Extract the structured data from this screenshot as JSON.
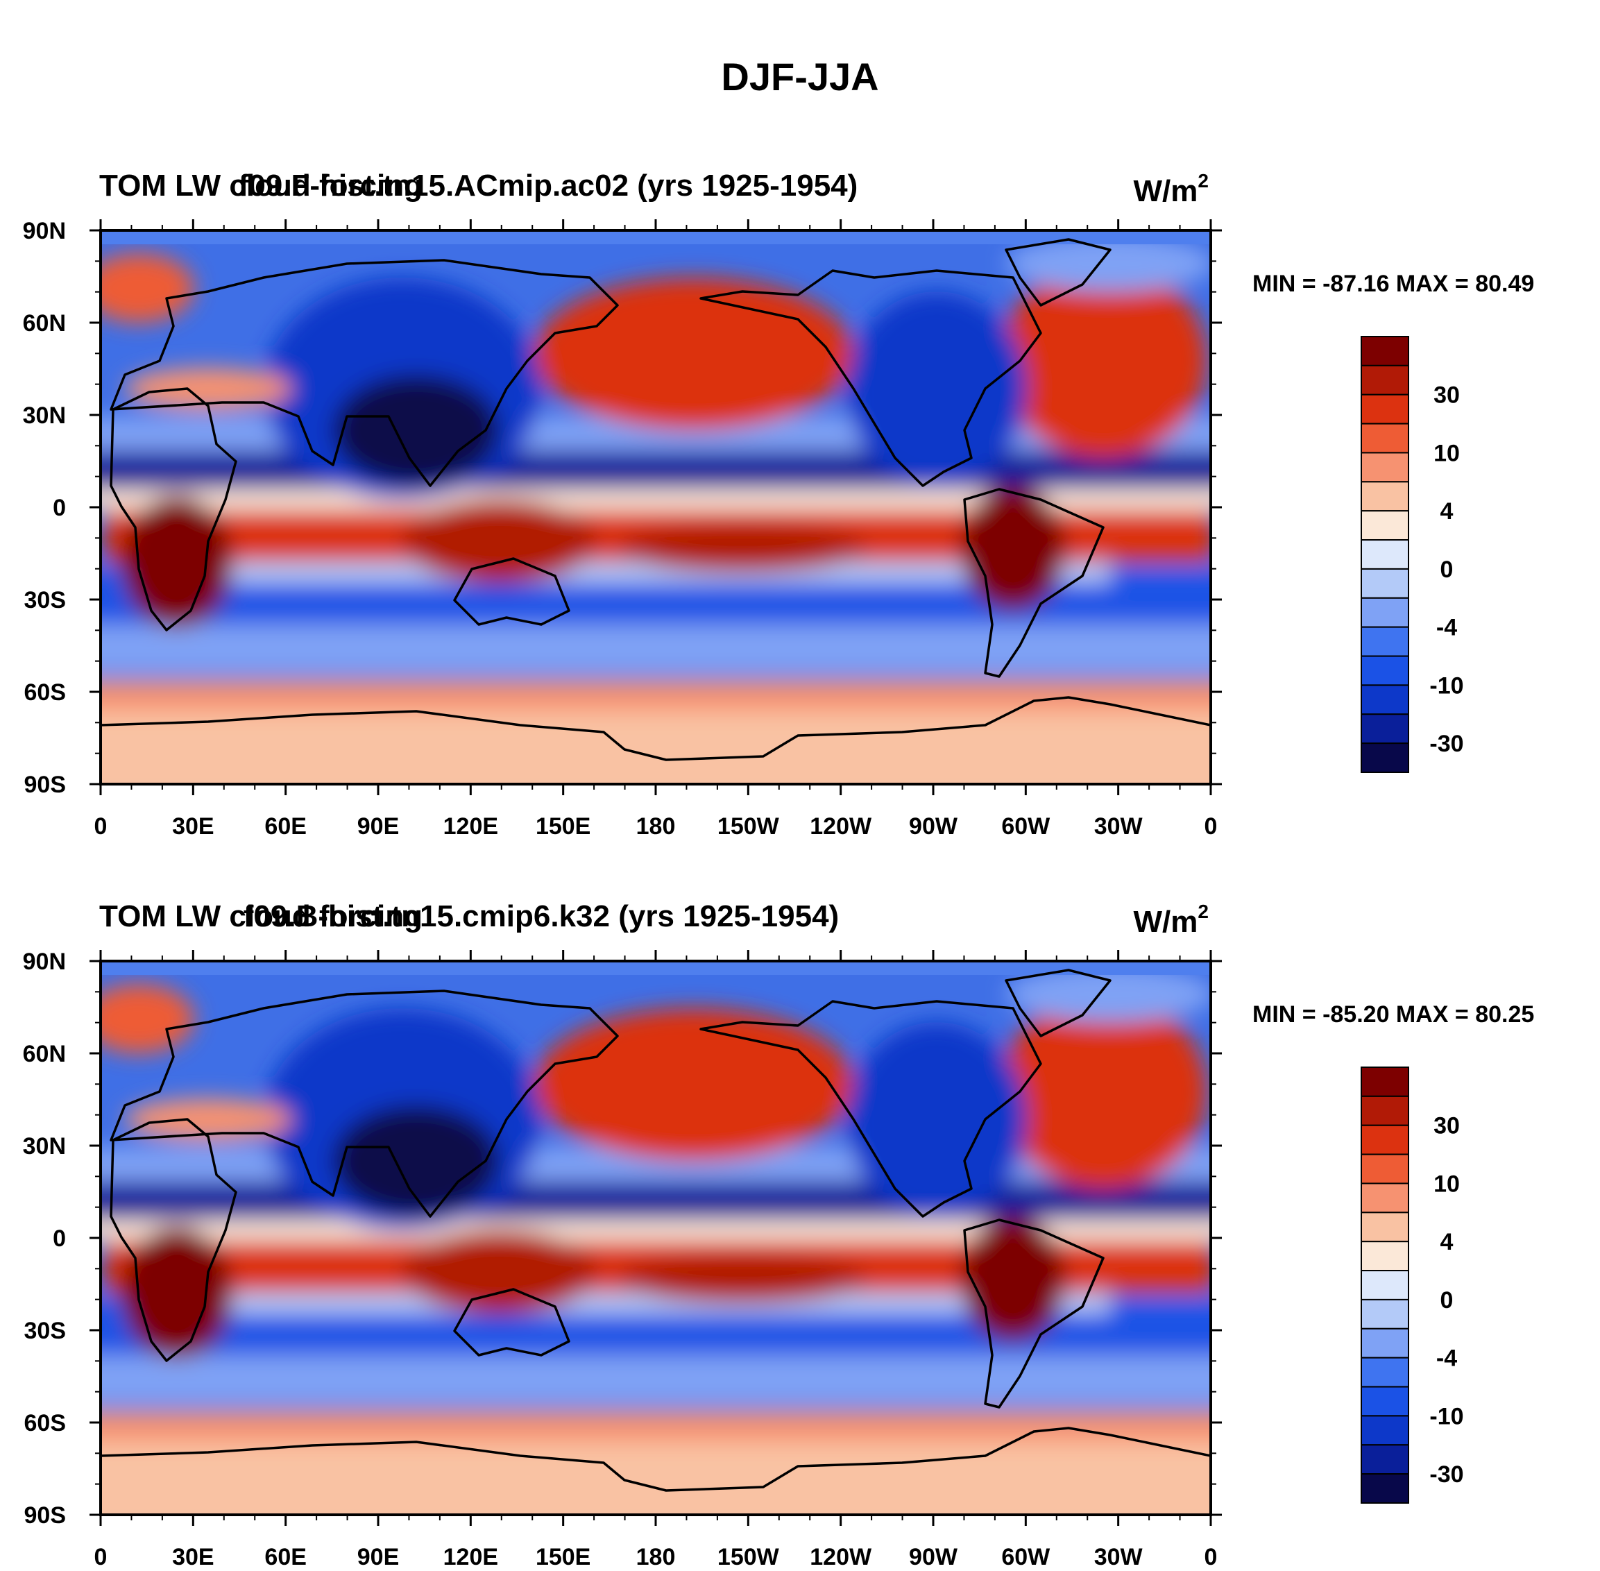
{
  "figure": {
    "title": "DJF-JJA"
  },
  "colors": {
    "ocean_base": "#3f6fe6",
    "coastline": "#000000",
    "colorbar": [
      "#08084a",
      "#0a1f9a",
      "#0d38c9",
      "#1b52e6",
      "#3f74f0",
      "#7fa2f5",
      "#b3caf8",
      "#dde8fb",
      "#fbe8d8",
      "#f9c2a3",
      "#f69271",
      "#ee5c35",
      "#dc3210",
      "#b11a06",
      "#7d0000"
    ]
  },
  "panels": [
    {
      "id": "top",
      "left_title": "TOM LW cloud forcing",
      "case_title": "f09.F-hist.tn15.ACmip.ac02 (yrs 1925-1954)",
      "units_base": "W/m",
      "units_exp": "2",
      "min_max": "MIN = -87.16 MAX =  80.49",
      "colorbar_labels": [
        "30",
        "10",
        "4",
        "0",
        "-4",
        "-10",
        "-30"
      ],
      "lat_labels": [
        "90N",
        "60N",
        "30N",
        "0",
        "30S",
        "60S",
        "90S"
      ],
      "lon_labels": [
        "0",
        "30E",
        "60E",
        "90E",
        "120E",
        "150E",
        "180",
        "150W",
        "120W",
        "90W",
        "60W",
        "30W",
        "0"
      ]
    },
    {
      "id": "bottom",
      "left_title": "TOM LW cloud forcing",
      "case_title": "f09.B-hist.tn15.cmip6.k32 (yrs 1925-1954)",
      "units_base": "W/m",
      "units_exp": "2",
      "min_max": "MIN = -85.20 MAX =  80.25",
      "colorbar_labels": [
        "30",
        "10",
        "4",
        "0",
        "-4",
        "-10",
        "-30"
      ],
      "lat_labels": [
        "90N",
        "60N",
        "30N",
        "0",
        "30S",
        "60S",
        "90S"
      ],
      "lon_labels": [
        "0",
        "30E",
        "60E",
        "90E",
        "120E",
        "150E",
        "180",
        "150W",
        "120W",
        "90W",
        "60W",
        "30W",
        "0"
      ]
    }
  ]
}
